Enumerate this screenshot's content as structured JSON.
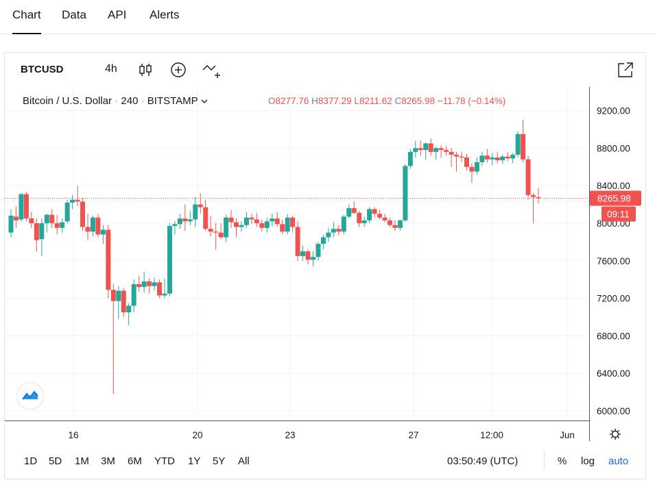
{
  "tabs": [
    "Chart",
    "Data",
    "API",
    "Alerts"
  ],
  "toolbar": {
    "symbol": "BTCUSD",
    "interval": "4h",
    "icons": [
      "candles-icon",
      "add-indicator-icon",
      "compare-icon",
      "fullscreen-icon"
    ]
  },
  "legend": {
    "name": "Bitcoin / U.S. Dollar",
    "interval": "240",
    "exchange": "BITSTAMP",
    "o_label": "O",
    "o": "8277.76",
    "h_label": "H",
    "h": "8377.29",
    "l_label": "L",
    "l": "8211.62",
    "c_label": "C",
    "c": "8265.98",
    "change": "−11.78 (−0.14%)"
  },
  "colors": {
    "up": "#26a69a",
    "down": "#ef5350",
    "accent": "#2962ff",
    "grid": "#f0f3fa"
  },
  "chart_data": {
    "type": "candlestick",
    "symbol": "BTCUSD",
    "ylim": [
      5900,
      9450
    ],
    "y_ticks": [
      "9200.00",
      "8800.00",
      "8400.00",
      "8000.00",
      "7600.00",
      "7200.00",
      "6800.00",
      "6400.00",
      "6000.00"
    ],
    "x_ticks": [
      "16",
      "20",
      "23",
      "27",
      "12:00",
      "Jun"
    ],
    "last_price_label": "8265.98",
    "countdown_label": "09:11",
    "last_price": 8265.98,
    "candles": [
      {
        "o": 7900,
        "h": 8150,
        "l": 7850,
        "c": 8080
      },
      {
        "o": 8070,
        "h": 8180,
        "l": 7950,
        "c": 8030
      },
      {
        "o": 8040,
        "h": 8320,
        "l": 8020,
        "c": 8310
      },
      {
        "o": 8310,
        "h": 8330,
        "l": 8020,
        "c": 8050
      },
      {
        "o": 8050,
        "h": 8120,
        "l": 7950,
        "c": 8000
      },
      {
        "o": 8000,
        "h": 8050,
        "l": 7700,
        "c": 7820
      },
      {
        "o": 7830,
        "h": 8050,
        "l": 7650,
        "c": 8000
      },
      {
        "o": 8000,
        "h": 8100,
        "l": 7900,
        "c": 8090
      },
      {
        "o": 8090,
        "h": 8150,
        "l": 7950,
        "c": 8000
      },
      {
        "o": 8000,
        "h": 8090,
        "l": 7880,
        "c": 7950
      },
      {
        "o": 7950,
        "h": 8050,
        "l": 7900,
        "c": 8010
      },
      {
        "o": 8020,
        "h": 8250,
        "l": 8000,
        "c": 8220
      },
      {
        "o": 8220,
        "h": 8300,
        "l": 8150,
        "c": 8250
      },
      {
        "o": 8250,
        "h": 8400,
        "l": 8180,
        "c": 8230
      },
      {
        "o": 8230,
        "h": 8270,
        "l": 7920,
        "c": 7960
      },
      {
        "o": 7960,
        "h": 8100,
        "l": 7820,
        "c": 7910
      },
      {
        "o": 7910,
        "h": 8080,
        "l": 7860,
        "c": 8060
      },
      {
        "o": 8060,
        "h": 8100,
        "l": 7850,
        "c": 7880
      },
      {
        "o": 7880,
        "h": 7980,
        "l": 7780,
        "c": 7930
      },
      {
        "o": 7930,
        "h": 7980,
        "l": 7200,
        "c": 7290
      },
      {
        "o": 7290,
        "h": 7350,
        "l": 6180,
        "c": 7170
      },
      {
        "o": 7170,
        "h": 7330,
        "l": 6980,
        "c": 7280
      },
      {
        "o": 7280,
        "h": 7310,
        "l": 7000,
        "c": 7050
      },
      {
        "o": 7050,
        "h": 7150,
        "l": 6910,
        "c": 7120
      },
      {
        "o": 7120,
        "h": 7400,
        "l": 7050,
        "c": 7350
      },
      {
        "o": 7350,
        "h": 7440,
        "l": 7270,
        "c": 7320
      },
      {
        "o": 7320,
        "h": 7480,
        "l": 7260,
        "c": 7380
      },
      {
        "o": 7380,
        "h": 7410,
        "l": 7250,
        "c": 7330
      },
      {
        "o": 7330,
        "h": 7420,
        "l": 7280,
        "c": 7370
      },
      {
        "o": 7370,
        "h": 7400,
        "l": 7200,
        "c": 7230
      },
      {
        "o": 7230,
        "h": 7410,
        "l": 7200,
        "c": 7250
      },
      {
        "o": 7250,
        "h": 8000,
        "l": 7220,
        "c": 7970
      },
      {
        "o": 7970,
        "h": 8020,
        "l": 7880,
        "c": 7990
      },
      {
        "o": 7990,
        "h": 8100,
        "l": 7940,
        "c": 8050
      },
      {
        "o": 8050,
        "h": 8200,
        "l": 7920,
        "c": 8020
      },
      {
        "o": 8020,
        "h": 8130,
        "l": 7980,
        "c": 8040
      },
      {
        "o": 8040,
        "h": 8280,
        "l": 7960,
        "c": 8200
      },
      {
        "o": 8200,
        "h": 8320,
        "l": 8100,
        "c": 8170
      },
      {
        "o": 8170,
        "h": 8250,
        "l": 7920,
        "c": 7940
      },
      {
        "o": 7940,
        "h": 8080,
        "l": 7860,
        "c": 7910
      },
      {
        "o": 7910,
        "h": 8000,
        "l": 7720,
        "c": 7900
      },
      {
        "o": 7900,
        "h": 8000,
        "l": 7830,
        "c": 7850
      },
      {
        "o": 7850,
        "h": 8090,
        "l": 7800,
        "c": 8060
      },
      {
        "o": 8060,
        "h": 8140,
        "l": 7950,
        "c": 8010
      },
      {
        "o": 8010,
        "h": 8050,
        "l": 7850,
        "c": 7960
      },
      {
        "o": 7960,
        "h": 8020,
        "l": 7910,
        "c": 7980
      },
      {
        "o": 7980,
        "h": 8120,
        "l": 7950,
        "c": 8060
      },
      {
        "o": 8060,
        "h": 8100,
        "l": 7990,
        "c": 8040
      },
      {
        "o": 8040,
        "h": 8110,
        "l": 7960,
        "c": 8000
      },
      {
        "o": 8000,
        "h": 8040,
        "l": 7910,
        "c": 7950
      },
      {
        "o": 7950,
        "h": 8060,
        "l": 7900,
        "c": 8020
      },
      {
        "o": 8020,
        "h": 8100,
        "l": 7970,
        "c": 8050
      },
      {
        "o": 8050,
        "h": 8120,
        "l": 7960,
        "c": 7990
      },
      {
        "o": 7990,
        "h": 8040,
        "l": 7880,
        "c": 7910
      },
      {
        "o": 7910,
        "h": 8100,
        "l": 7880,
        "c": 8060
      },
      {
        "o": 8060,
        "h": 8080,
        "l": 7900,
        "c": 7960
      },
      {
        "o": 7960,
        "h": 8020,
        "l": 7600,
        "c": 7650
      },
      {
        "o": 7650,
        "h": 7760,
        "l": 7600,
        "c": 7700
      },
      {
        "o": 7700,
        "h": 7720,
        "l": 7560,
        "c": 7610
      },
      {
        "o": 7610,
        "h": 7700,
        "l": 7540,
        "c": 7640
      },
      {
        "o": 7640,
        "h": 7800,
        "l": 7600,
        "c": 7780
      },
      {
        "o": 7780,
        "h": 7880,
        "l": 7720,
        "c": 7850
      },
      {
        "o": 7850,
        "h": 7950,
        "l": 7800,
        "c": 7900
      },
      {
        "o": 7900,
        "h": 8010,
        "l": 7850,
        "c": 7940
      },
      {
        "o": 7940,
        "h": 7980,
        "l": 7870,
        "c": 7910
      },
      {
        "o": 7910,
        "h": 8090,
        "l": 7880,
        "c": 8070
      },
      {
        "o": 8070,
        "h": 8200,
        "l": 8050,
        "c": 8160
      },
      {
        "o": 8160,
        "h": 8230,
        "l": 8100,
        "c": 8110
      },
      {
        "o": 8110,
        "h": 8130,
        "l": 7960,
        "c": 8000
      },
      {
        "o": 8000,
        "h": 8070,
        "l": 7960,
        "c": 8030
      },
      {
        "o": 8030,
        "h": 8170,
        "l": 8000,
        "c": 8150
      },
      {
        "o": 8150,
        "h": 8170,
        "l": 8060,
        "c": 8100
      },
      {
        "o": 8100,
        "h": 8140,
        "l": 8040,
        "c": 8060
      },
      {
        "o": 8060,
        "h": 8100,
        "l": 8010,
        "c": 8030
      },
      {
        "o": 8030,
        "h": 8060,
        "l": 7960,
        "c": 7980
      },
      {
        "o": 7980,
        "h": 8030,
        "l": 7920,
        "c": 7950
      },
      {
        "o": 7950,
        "h": 8040,
        "l": 7920,
        "c": 8030
      },
      {
        "o": 8030,
        "h": 8630,
        "l": 8010,
        "c": 8610
      },
      {
        "o": 8610,
        "h": 8790,
        "l": 8580,
        "c": 8760
      },
      {
        "o": 8760,
        "h": 8880,
        "l": 8700,
        "c": 8800
      },
      {
        "o": 8800,
        "h": 8880,
        "l": 8720,
        "c": 8780
      },
      {
        "o": 8780,
        "h": 8860,
        "l": 8680,
        "c": 8850
      },
      {
        "o": 8850,
        "h": 8900,
        "l": 8720,
        "c": 8760
      },
      {
        "o": 8760,
        "h": 8820,
        "l": 8680,
        "c": 8800
      },
      {
        "o": 8800,
        "h": 8830,
        "l": 8700,
        "c": 8780
      },
      {
        "o": 8780,
        "h": 8820,
        "l": 8720,
        "c": 8760
      },
      {
        "o": 8760,
        "h": 8800,
        "l": 8600,
        "c": 8730
      },
      {
        "o": 8730,
        "h": 8760,
        "l": 8550,
        "c": 8710
      },
      {
        "o": 8710,
        "h": 8760,
        "l": 8650,
        "c": 8700
      },
      {
        "o": 8700,
        "h": 8740,
        "l": 8560,
        "c": 8600
      },
      {
        "o": 8600,
        "h": 8640,
        "l": 8430,
        "c": 8550
      },
      {
        "o": 8550,
        "h": 8700,
        "l": 8520,
        "c": 8650
      },
      {
        "o": 8650,
        "h": 8760,
        "l": 8610,
        "c": 8720
      },
      {
        "o": 8720,
        "h": 8790,
        "l": 8650,
        "c": 8680
      },
      {
        "o": 8680,
        "h": 8750,
        "l": 8620,
        "c": 8700
      },
      {
        "o": 8700,
        "h": 8760,
        "l": 8640,
        "c": 8670
      },
      {
        "o": 8670,
        "h": 8730,
        "l": 8630,
        "c": 8710
      },
      {
        "o": 8710,
        "h": 8760,
        "l": 8660,
        "c": 8690
      },
      {
        "o": 8690,
        "h": 8750,
        "l": 8640,
        "c": 8730
      },
      {
        "o": 8730,
        "h": 8980,
        "l": 8700,
        "c": 8950
      },
      {
        "o": 8950,
        "h": 9100,
        "l": 8650,
        "c": 8680
      },
      {
        "o": 8680,
        "h": 8720,
        "l": 8250,
        "c": 8300
      },
      {
        "o": 8300,
        "h": 8320,
        "l": 8000,
        "c": 8280
      },
      {
        "o": 8277.76,
        "h": 8377.29,
        "l": 8211.62,
        "c": 8265.98
      }
    ]
  },
  "bottom": {
    "ranges": [
      "1D",
      "5D",
      "1M",
      "3M",
      "6M",
      "YTD",
      "1Y",
      "5Y",
      "All"
    ],
    "clock": "03:50:49 (UTC)",
    "percent": "%",
    "log": "log",
    "auto": "auto"
  }
}
